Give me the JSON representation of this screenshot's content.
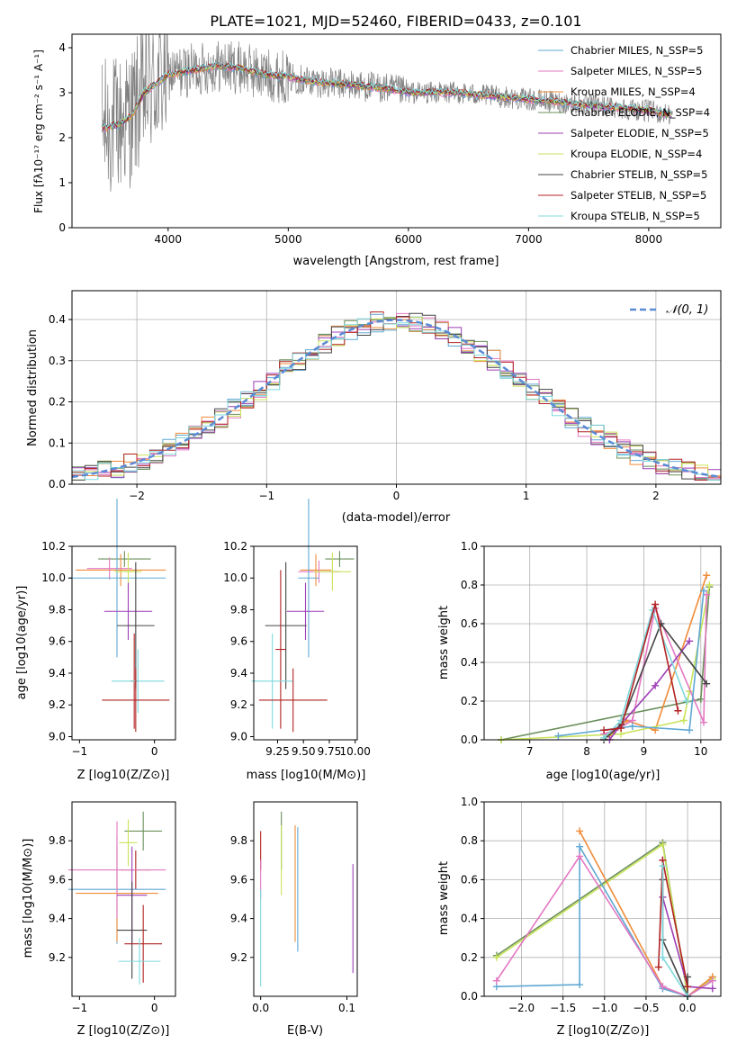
{
  "chart_data": [
    {
      "type": "line",
      "title": "PLATE=1021, MJD=52460, FIBERID=0433, z=0.101",
      "xlabel": "wavelength [Angstrom, rest frame]",
      "ylabel": "Flux [fλ10⁻¹⁷ erg cm⁻² s⁻¹ A⁻¹]",
      "xlim": [
        3200,
        8600
      ],
      "ylim": [
        0,
        4.3
      ],
      "xticks": [
        "4000",
        "5000",
        "6000",
        "7000",
        "8000"
      ],
      "yticks": [
        "0",
        "1",
        "2",
        "3",
        "4"
      ],
      "grid": false,
      "legend": "right",
      "series": [
        {
          "name": "Chabrier MILES, N_SSP=5",
          "color": "#5fa8d3"
        },
        {
          "name": "Salpeter MILES, N_SSP=5",
          "color": "#e377c2"
        },
        {
          "name": "Kroupa MILES, N_SSP=4",
          "color": "#f08c3a"
        },
        {
          "name": "Chabrier ELODIE, N_SSP=4",
          "color": "#6a8f5a"
        },
        {
          "name": "Salpeter ELODIE, N_SSP=5",
          "color": "#9d3fb5"
        },
        {
          "name": "Kroupa ELODIE, N_SSP=4",
          "color": "#c9e35a"
        },
        {
          "name": "Chabrier STELIB, N_SSP=5",
          "color": "#444444"
        },
        {
          "name": "Salpeter STELIB, N_SSP=5",
          "color": "#b22222"
        },
        {
          "name": "Kroupa STELIB, N_SSP=5",
          "color": "#7fd8dd"
        }
      ],
      "data_color": "#808080",
      "continuum": {
        "x": [
          3450,
          3600,
          3700,
          3800,
          4000,
          4200,
          4400,
          4600,
          4800,
          5000,
          5200,
          5400,
          5600,
          5800,
          6000,
          6200,
          6400,
          6600,
          6800,
          7000,
          7200,
          7400,
          7600,
          7800,
          8000,
          8200
        ],
        "y": [
          2.2,
          2.3,
          2.5,
          3.0,
          3.4,
          3.5,
          3.6,
          3.55,
          3.4,
          3.35,
          3.25,
          3.2,
          3.15,
          3.1,
          3.0,
          3.0,
          3.0,
          2.95,
          2.9,
          2.85,
          2.8,
          2.75,
          2.7,
          2.65,
          2.6,
          2.5
        ]
      }
    },
    {
      "type": "line",
      "xlabel": "(data-model)/error",
      "ylabel": "Normed distribution",
      "xlim": [
        -2.5,
        2.5
      ],
      "ylim": [
        0,
        0.47
      ],
      "xticks": [
        "−2",
        "−1",
        "0",
        "1",
        "2"
      ],
      "yticks": [
        "0.0",
        "0.1",
        "0.2",
        "0.3",
        "0.4"
      ],
      "grid": true,
      "legend": "top-right",
      "legend_label": "𝒩(0, 1)",
      "bin_width": 0.1
    },
    {
      "type": "scatter",
      "xlabel": "Z [log10(Z/Z⊙)]",
      "ylabel": "age  [log10(age/yr)]",
      "xlim": [
        -1.1,
        0.28
      ],
      "ylim": [
        8.98,
        10.2
      ],
      "xticks": [
        "−1",
        "0"
      ],
      "xtick_values": [
        -1,
        0
      ],
      "yticks": [
        "9.0",
        "9.2",
        "9.4",
        "9.6",
        "9.8",
        "10.0",
        "10.2"
      ],
      "ytick_values": [
        9.0,
        9.2,
        9.4,
        9.6,
        9.8,
        10.0,
        10.2
      ],
      "points": [
        {
          "x": -0.4,
          "y": 10.12,
          "xerr": 0.35,
          "yerr": 0.05,
          "c": 3
        },
        {
          "x": -0.45,
          "y": 10.05,
          "xerr": 0.6,
          "yerr": 0.1,
          "c": 2
        },
        {
          "x": -0.6,
          "y": 10.06,
          "xerr": 0.3,
          "yerr": 0.07,
          "c": 1
        },
        {
          "x": -0.5,
          "y": 10.0,
          "xerr": 0.65,
          "yerr": 0.5,
          "c": 0
        },
        {
          "x": -0.35,
          "y": 10.04,
          "xerr": 0.18,
          "yerr": 0.12,
          "c": 5
        },
        {
          "x": -0.35,
          "y": 9.79,
          "xerr": 0.32,
          "yerr": 0.18,
          "c": 4
        },
        {
          "x": -0.25,
          "y": 9.7,
          "xerr": 0.25,
          "yerr": 0.4,
          "c": 6
        },
        {
          "x": -0.27,
          "y": 9.35,
          "xerr": 0.05,
          "yerr": 0.3,
          "c": 7
        },
        {
          "x": -0.22,
          "y": 9.35,
          "xerr": 0.35,
          "yerr": 0.2,
          "c": 8
        },
        {
          "x": -0.25,
          "y": 9.23,
          "xerr": 0.45,
          "yerr": 0.2,
          "c": 7
        }
      ]
    },
    {
      "type": "scatter",
      "xlabel": "mass [log10(M/M⊙)]",
      "xlim": [
        9.02,
        10.02
      ],
      "ylim": [
        8.98,
        10.2
      ],
      "xticks": [
        "9.25",
        "9.50",
        "9.75",
        "10.00"
      ],
      "xtick_values": [
        9.25,
        9.5,
        9.75,
        10.0
      ],
      "yticks": [
        "9.0",
        "9.2",
        "9.4",
        "9.6",
        "9.8",
        "10.0",
        "10.2"
      ],
      "ytick_values": [
        9.0,
        9.2,
        9.4,
        9.6,
        9.8,
        10.0,
        10.2
      ],
      "points": [
        {
          "x": 9.85,
          "y": 10.12,
          "xerr": 0.14,
          "yerr": 0.05,
          "c": 3
        },
        {
          "x": 9.62,
          "y": 10.05,
          "xerr": 0.15,
          "yerr": 0.1,
          "c": 2
        },
        {
          "x": 9.65,
          "y": 10.04,
          "xerr": 0.2,
          "yerr": 0.07,
          "c": 1
        },
        {
          "x": 9.55,
          "y": 10.0,
          "xerr": 0.1,
          "yerr": 0.5,
          "c": 0
        },
        {
          "x": 9.78,
          "y": 10.04,
          "xerr": 0.18,
          "yerr": 0.12,
          "c": 5
        },
        {
          "x": 9.52,
          "y": 9.79,
          "xerr": 0.18,
          "yerr": 0.18,
          "c": 4
        },
        {
          "x": 9.33,
          "y": 9.7,
          "xerr": 0.2,
          "yerr": 0.4,
          "c": 6
        },
        {
          "x": 9.28,
          "y": 9.55,
          "xerr": 0.05,
          "yerr": 0.5,
          "c": 7
        },
        {
          "x": 9.2,
          "y": 9.35,
          "xerr": 0.2,
          "yerr": 0.3,
          "c": 8
        },
        {
          "x": 9.4,
          "y": 9.23,
          "xerr": 0.33,
          "yerr": 0.2,
          "c": 7
        }
      ]
    },
    {
      "type": "line",
      "xlabel": "age  [log10(age/yr)]",
      "ylabel": "mass weight",
      "xlim": [
        6.2,
        10.35
      ],
      "ylim": [
        0,
        1.0
      ],
      "xticks": [
        "7",
        "8",
        "9",
        "10"
      ],
      "xtick_values": [
        7,
        8,
        9,
        10
      ],
      "yticks": [
        "0.0",
        "0.2",
        "0.4",
        "0.6",
        "0.8",
        "1.0"
      ],
      "ytick_values": [
        0,
        0.2,
        0.4,
        0.6,
        0.8,
        1.0
      ],
      "grid": true,
      "series": [
        {
          "c": 3,
          "x": [
            6.5,
            10.0,
            10.15
          ],
          "y": [
            0.0,
            0.21,
            0.79
          ]
        },
        {
          "c": 2,
          "x": [
            8.3,
            8.4,
            8.7,
            9.2,
            10.1
          ],
          "y": [
            0.0,
            0.02,
            0.1,
            0.05,
            0.85
          ]
        },
        {
          "c": 5,
          "x": [
            6.5,
            8.6,
            9.7,
            9.8,
            10.15
          ],
          "y": [
            0.0,
            0.03,
            0.1,
            0.25,
            0.8
          ]
        },
        {
          "c": 1,
          "x": [
            8.3,
            8.5,
            8.8,
            9.2,
            10.05,
            10.1
          ],
          "y": [
            0.03,
            0.05,
            0.1,
            0.68,
            0.09,
            0.75
          ]
        },
        {
          "c": 0,
          "x": [
            7.5,
            8.8,
            9.8,
            10.05
          ],
          "y": [
            0.02,
            0.07,
            0.05,
            0.77
          ]
        },
        {
          "c": 4,
          "x": [
            8.4,
            8.6,
            9.2,
            9.8
          ],
          "y": [
            0.0,
            0.08,
            0.28,
            0.51
          ]
        },
        {
          "c": 6,
          "x": [
            8.3,
            8.6,
            9.3,
            10.1
          ],
          "y": [
            0.0,
            0.08,
            0.6,
            0.29
          ]
        },
        {
          "c": 8,
          "x": [
            8.3,
            8.6,
            9.15,
            9.75
          ],
          "y": [
            0.01,
            0.1,
            0.67,
            0.2
          ]
        },
        {
          "c": 7,
          "x": [
            8.3,
            8.6,
            9.2,
            9.6
          ],
          "y": [
            0.05,
            0.06,
            0.7,
            0.15
          ]
        }
      ]
    },
    {
      "type": "scatter",
      "xlabel": "Z [log10(Z/Z⊙)]",
      "ylabel": "mass [log10(M/M⊙)]",
      "xlim": [
        -1.1,
        0.28
      ],
      "ylim": [
        9.0,
        10.0
      ],
      "xticks": [
        "−1",
        "0"
      ],
      "xtick_values": [
        -1,
        0
      ],
      "yticks": [
        "9.2",
        "9.4",
        "9.6",
        "9.8"
      ],
      "ytick_values": [
        9.2,
        9.4,
        9.6,
        9.8
      ],
      "points": [
        {
          "x": -0.15,
          "y": 9.85,
          "xerr": 0.25,
          "yerr": 0.1,
          "c": 3
        },
        {
          "x": -0.35,
          "y": 9.79,
          "xerr": 0.12,
          "yerr": 0.12,
          "c": 5
        },
        {
          "x": -0.25,
          "y": 9.65,
          "xerr": 0.2,
          "yerr": 0.1,
          "c": 7
        },
        {
          "x": -0.5,
          "y": 9.55,
          "xerr": 0.65,
          "yerr": 0.28,
          "c": 0
        },
        {
          "x": -0.5,
          "y": 9.53,
          "xerr": 0.55,
          "yerr": 0.25,
          "c": 2
        },
        {
          "x": -0.5,
          "y": 9.65,
          "xerr": 0.65,
          "yerr": 0.25,
          "c": 1
        },
        {
          "x": -0.3,
          "y": 9.52,
          "xerr": 0.2,
          "yerr": 0.25,
          "c": 4
        },
        {
          "x": -0.3,
          "y": 9.34,
          "xerr": 0.2,
          "yerr": 0.25,
          "c": 6
        },
        {
          "x": -0.15,
          "y": 9.27,
          "xerr": 0.25,
          "yerr": 0.2,
          "c": 7
        },
        {
          "x": -0.2,
          "y": 9.18,
          "xerr": 0.28,
          "yerr": 0.12,
          "c": 8
        }
      ]
    },
    {
      "type": "scatter",
      "xlabel": "E(B-V)",
      "xlim": [
        -0.008,
        0.112
      ],
      "ylim": [
        9.0,
        10.0
      ],
      "xticks": [
        "0.0",
        "0.1"
      ],
      "xtick_values": [
        0,
        0.1
      ],
      "yticks": [
        "9.2",
        "9.4",
        "9.6",
        "9.8"
      ],
      "ytick_values": [
        9.2,
        9.4,
        9.6,
        9.8
      ],
      "points": [
        {
          "x": 0.0,
          "y": 9.75,
          "xerr": 0,
          "yerr": 0.1,
          "c": 7
        },
        {
          "x": 0.0,
          "y": 9.6,
          "xerr": 0,
          "yerr": 0.1,
          "c": 1
        },
        {
          "x": 0.0,
          "y": 9.3,
          "xerr": 0,
          "yerr": 0.25,
          "c": 8
        },
        {
          "x": 0.024,
          "y": 9.8,
          "xerr": 0,
          "yerr": 0.15,
          "c": 3
        },
        {
          "x": 0.024,
          "y": 9.7,
          "xerr": 0,
          "yerr": 0.18,
          "c": 5
        },
        {
          "x": 0.04,
          "y": 9.58,
          "xerr": 0,
          "yerr": 0.3,
          "c": 2
        },
        {
          "x": 0.043,
          "y": 9.55,
          "xerr": 0,
          "yerr": 0.32,
          "c": 0
        },
        {
          "x": 0.107,
          "y": 9.4,
          "xerr": 0,
          "yerr": 0.28,
          "c": 4
        }
      ]
    },
    {
      "type": "line",
      "xlabel": "Z [log10(Z/Z⊙)]",
      "ylabel": "mass weight",
      "xlim": [
        -2.45,
        0.4
      ],
      "ylim": [
        0,
        1.0
      ],
      "xticks": [
        "−2.0",
        "−1.5",
        "−1.0",
        "−0.5",
        "0.0"
      ],
      "xtick_values": [
        -2.0,
        -1.5,
        -1.0,
        -0.5,
        0.0
      ],
      "yticks": [
        "0.0",
        "0.2",
        "0.4",
        "0.6",
        "0.8",
        "1.0"
      ],
      "ytick_values": [
        0,
        0.2,
        0.4,
        0.6,
        0.8,
        1.0
      ],
      "grid": true,
      "series": [
        {
          "c": 3,
          "x": [
            -2.3,
            -0.3,
            0.0,
            0.3
          ],
          "y": [
            0.21,
            0.79,
            0.0,
            0.1
          ]
        },
        {
          "c": 5,
          "x": [
            -2.3,
            -0.3,
            0.0,
            0.3
          ],
          "y": [
            0.2,
            0.78,
            0.0,
            0.09
          ]
        },
        {
          "c": 2,
          "x": [
            -1.3,
            -0.3,
            0.0,
            0.3
          ],
          "y": [
            0.85,
            0.05,
            0.0,
            0.1
          ]
        },
        {
          "c": 0,
          "x": [
            -2.3,
            -1.3,
            -1.3,
            -0.3,
            0.0,
            0.3
          ],
          "y": [
            0.05,
            0.06,
            0.77,
            0.04,
            0.0,
            0.08
          ]
        },
        {
          "c": 1,
          "x": [
            -2.3,
            -1.3,
            -0.3,
            0.0,
            0.3
          ],
          "y": [
            0.08,
            0.72,
            0.05,
            0.0,
            0.08
          ]
        },
        {
          "c": 4,
          "x": [
            -0.3,
            -0.3,
            0.0,
            0.3
          ],
          "y": [
            0.7,
            0.51,
            0.05,
            0.04
          ]
        },
        {
          "c": 6,
          "x": [
            -0.3,
            -0.3,
            0.0,
            0.0
          ],
          "y": [
            0.6,
            0.29,
            0.0,
            0.1
          ]
        },
        {
          "c": 7,
          "x": [
            -0.35,
            -0.3,
            0.0
          ],
          "y": [
            0.15,
            0.7,
            0.05
          ]
        },
        {
          "c": 8,
          "x": [
            -0.3,
            -0.3,
            0.0
          ],
          "y": [
            0.67,
            0.2,
            0.0
          ]
        }
      ]
    }
  ]
}
